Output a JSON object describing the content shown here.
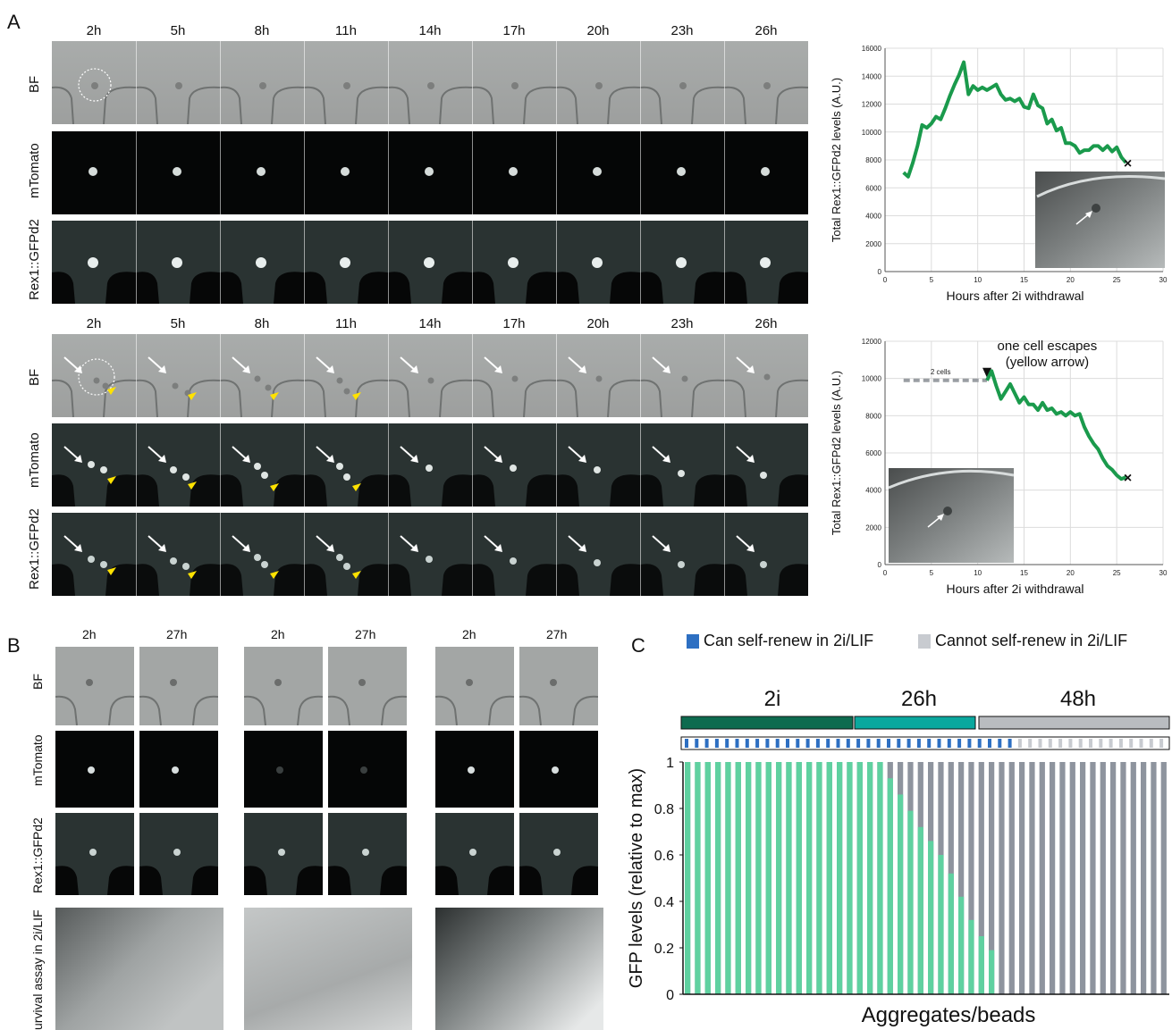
{
  "panel_labels": {
    "a": "A",
    "b": "B",
    "c": "C"
  },
  "timepoints": [
    "2h",
    "5h",
    "8h",
    "11h",
    "14h",
    "17h",
    "20h",
    "23h",
    "26h"
  ],
  "channels": {
    "bf": "BF",
    "mtomato": "mTomato",
    "rex": "Rex1::GFPd2"
  },
  "panel_b": {
    "groups": [
      {
        "times": [
          "2h",
          "27h"
        ]
      },
      {
        "times": [
          "2h",
          "27h"
        ]
      },
      {
        "times": [
          "2h",
          "27h"
        ]
      }
    ],
    "survival_label": "urvival assay in 2i/LIF"
  },
  "panel_c": {
    "legend": {
      "can": "Can self-renew in 2i/LIF",
      "cannot": "Cannot self-renew in 2i/LIF"
    },
    "conditions": [
      "2i",
      "26h",
      "48h"
    ],
    "colors": {
      "dark_green": "#0d6b4f",
      "teal": "#0aa89e",
      "gray": "#b9bcc0",
      "bar_green": "#5fd1a0",
      "bar_gray": "#8e949e",
      "blue": "#2d6fc2"
    }
  },
  "chart_data": [
    {
      "type": "line",
      "title": "",
      "xlabel": "Hours after 2i withdrawal",
      "ylabel": "Total Rex1::GFPd2 levels (A.U.)",
      "xlim": [
        0,
        30
      ],
      "ylim": [
        0,
        16000
      ],
      "xticks": [
        0,
        5,
        10,
        15,
        20,
        25,
        30
      ],
      "yticks": [
        0,
        2000,
        4000,
        6000,
        8000,
        10000,
        12000,
        14000,
        16000
      ],
      "grid": true,
      "series": [
        {
          "color": "#1a9a4c",
          "x": [
            2,
            2.5,
            3,
            3.5,
            4,
            4.5,
            5,
            5.5,
            6,
            6.5,
            7,
            7.5,
            8,
            8.5,
            9,
            9.5,
            10,
            10.5,
            11,
            11.5,
            12,
            12.5,
            13,
            13.5,
            14,
            14.5,
            15,
            15.5,
            16,
            16.5,
            17,
            17.5,
            18,
            18.5,
            19,
            19.5,
            20,
            20.5,
            21,
            21.5,
            22,
            22.5,
            23,
            23.5,
            24,
            24.5,
            25,
            25.5,
            26
          ],
          "y": [
            7100,
            6800,
            7800,
            9000,
            10500,
            10300,
            10600,
            11100,
            10900,
            11700,
            12600,
            13400,
            14100,
            15000,
            12700,
            13300,
            13000,
            13200,
            13000,
            13200,
            13400,
            12700,
            12300,
            12400,
            12200,
            12400,
            11800,
            11700,
            12700,
            11900,
            11700,
            10600,
            10900,
            10100,
            10300,
            9200,
            9200,
            9000,
            8500,
            8700,
            8700,
            9000,
            9000,
            8700,
            9000,
            8600,
            8900,
            8200,
            7800
          ]
        }
      ],
      "end_marker": "×"
    },
    {
      "type": "line",
      "title": "",
      "xlabel": "Hours after 2i withdrawal",
      "ylabel": "Total Rex1::GFPd2 levels (A.U.)",
      "xlim": [
        0,
        30
      ],
      "ylim": [
        0,
        12000
      ],
      "xticks": [
        0,
        5,
        10,
        15,
        20,
        25,
        30
      ],
      "yticks": [
        0,
        2000,
        4000,
        6000,
        8000,
        10000,
        12000
      ],
      "grid": true,
      "annotations": {
        "dashed_label": "2 cells",
        "escape_line1": "one cell escapes",
        "escape_line2": "(yellow arrow)"
      },
      "dashed_segment": {
        "x": [
          2,
          11
        ],
        "y": [
          9900,
          9900
        ]
      },
      "series": [
        {
          "color": "#1a9a4c",
          "x": [
            11,
            11.5,
            12,
            12.5,
            13,
            13.5,
            14,
            14.5,
            15,
            15.5,
            16,
            16.5,
            17,
            17.5,
            18,
            18.5,
            19,
            19.5,
            20,
            20.5,
            21,
            21.5,
            22,
            22.5,
            23,
            23.5,
            24,
            24.5,
            25,
            25.5,
            26
          ],
          "y": [
            9900,
            10400,
            9600,
            8900,
            9300,
            9700,
            9200,
            8700,
            9000,
            8600,
            8600,
            8300,
            8700,
            8300,
            8400,
            8100,
            8200,
            8000,
            8200,
            8000,
            8100,
            7400,
            6900,
            6500,
            6200,
            5700,
            5300,
            5100,
            4800,
            4600,
            4700
          ]
        }
      ],
      "end_marker": "×"
    },
    {
      "type": "bar",
      "title": "",
      "xlabel": "Aggregates/beads",
      "ylabel": "GFP levels (relative to max)",
      "ylim": [
        0,
        1
      ],
      "yticks": [
        0,
        0.2,
        0.4,
        0.6,
        0.8,
        1
      ],
      "green_values": [
        1,
        1,
        1,
        1,
        1,
        1,
        1,
        1,
        1,
        1,
        1,
        1,
        1,
        1,
        1,
        1,
        1,
        1,
        1,
        1,
        0.93,
        0.86,
        0.79,
        0.72,
        0.66,
        0.6,
        0.52,
        0.42,
        0.32,
        0.25,
        0.19,
        0,
        0,
        0,
        0,
        0,
        0,
        0,
        0,
        0,
        0,
        0,
        0,
        0,
        0,
        0,
        0,
        0
      ],
      "n_bars": 48,
      "condition_spans": [
        [
          0,
          19
        ],
        [
          20,
          31
        ],
        [
          32,
          47
        ]
      ],
      "self_renew_count": 33
    }
  ]
}
